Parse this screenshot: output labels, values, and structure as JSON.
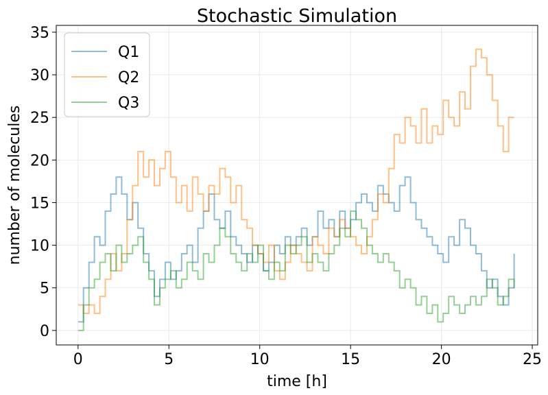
{
  "chart_data": {
    "type": "line",
    "title": "Stochastic Simulation",
    "xlabel": "time [h]",
    "ylabel": "number of molecules",
    "xlim": [
      -1.2,
      25.3
    ],
    "ylim": [
      -1.7,
      35.8
    ],
    "xticks": [
      0,
      5,
      10,
      15,
      20,
      25
    ],
    "yticks": [
      0,
      5,
      10,
      15,
      20,
      25,
      30,
      35
    ],
    "grid": true,
    "legend": "upper-left",
    "series": [
      {
        "name": "Q1",
        "color": "#1f77b4",
        "x": [
          0,
          0.3,
          0.6,
          0.9,
          1.2,
          1.5,
          1.8,
          2.1,
          2.4,
          2.7,
          3.0,
          3.3,
          3.6,
          3.9,
          4.2,
          4.5,
          4.8,
          5.1,
          5.4,
          5.7,
          6.0,
          6.3,
          6.6,
          6.9,
          7.2,
          7.5,
          7.8,
          8.1,
          8.4,
          8.7,
          9.0,
          9.3,
          9.6,
          9.9,
          10.2,
          10.5,
          10.8,
          11.1,
          11.4,
          11.7,
          12.0,
          12.3,
          12.6,
          12.9,
          13.2,
          13.5,
          13.8,
          14.1,
          14.4,
          14.7,
          15.0,
          15.3,
          15.6,
          15.9,
          16.2,
          16.5,
          16.8,
          17.1,
          17.4,
          17.7,
          18.0,
          18.3,
          18.6,
          18.9,
          19.2,
          19.5,
          19.8,
          20.1,
          20.4,
          20.7,
          21.0,
          21.3,
          21.6,
          21.9,
          22.2,
          22.5,
          22.8,
          23.1,
          23.4,
          23.7,
          24.0
        ],
        "y": [
          1,
          5,
          8,
          11,
          10,
          14,
          16,
          18,
          16,
          13,
          15,
          12,
          9,
          7,
          4,
          6,
          8,
          6,
          7,
          9,
          10,
          8,
          12,
          14,
          16,
          13,
          12,
          14,
          11,
          10,
          9,
          8,
          10,
          9,
          7,
          8,
          10,
          9,
          11,
          10,
          11,
          12,
          10,
          11,
          14,
          12,
          13,
          11,
          14,
          12,
          13,
          15,
          16,
          15,
          14,
          17,
          16,
          15,
          14,
          17,
          18,
          15,
          13,
          12,
          11,
          10,
          9,
          8,
          11,
          10,
          13,
          12,
          10,
          9,
          7,
          5,
          6,
          4,
          3,
          5,
          9
        ]
      },
      {
        "name": "Q2",
        "color": "#ff7f0e",
        "x": [
          0,
          0.3,
          0.6,
          0.9,
          1.2,
          1.5,
          1.8,
          2.1,
          2.4,
          2.7,
          3.0,
          3.3,
          3.6,
          3.9,
          4.2,
          4.5,
          4.8,
          5.1,
          5.4,
          5.7,
          6.0,
          6.3,
          6.6,
          6.9,
          7.2,
          7.5,
          7.8,
          8.1,
          8.4,
          8.7,
          9.0,
          9.3,
          9.6,
          9.9,
          10.2,
          10.5,
          10.8,
          11.1,
          11.4,
          11.7,
          12.0,
          12.3,
          12.6,
          12.9,
          13.2,
          13.5,
          13.8,
          14.1,
          14.4,
          14.7,
          15.0,
          15.3,
          15.6,
          15.9,
          16.2,
          16.5,
          16.8,
          17.1,
          17.4,
          17.7,
          18.0,
          18.3,
          18.6,
          18.9,
          19.2,
          19.5,
          19.8,
          20.1,
          20.4,
          20.7,
          21.0,
          21.3,
          21.6,
          21.9,
          22.2,
          22.5,
          22.8,
          23.1,
          23.4,
          23.7,
          24.0
        ],
        "y": [
          3,
          2,
          3,
          2,
          4,
          6,
          9,
          7,
          9,
          13,
          17,
          21,
          18,
          20,
          17,
          19,
          21,
          18,
          15,
          17,
          14,
          18,
          16,
          14,
          17,
          16,
          19,
          18,
          15,
          17,
          13,
          12,
          10,
          9,
          8,
          10,
          7,
          6,
          8,
          10,
          9,
          8,
          7,
          11,
          10,
          9,
          12,
          11,
          13,
          12,
          11,
          10,
          9,
          11,
          13,
          16,
          15,
          19,
          23,
          22,
          25,
          24,
          22,
          26,
          22,
          24,
          23,
          27,
          25,
          24,
          28,
          26,
          31,
          33,
          32,
          30,
          27,
          24,
          21,
          25,
          25
        ]
      },
      {
        "name": "Q3",
        "color": "#2ca02c",
        "x": [
          0,
          0.3,
          0.6,
          0.9,
          1.2,
          1.5,
          1.8,
          2.1,
          2.4,
          2.7,
          3.0,
          3.3,
          3.6,
          3.9,
          4.2,
          4.5,
          4.8,
          5.1,
          5.4,
          5.7,
          6.0,
          6.3,
          6.6,
          6.9,
          7.2,
          7.5,
          7.8,
          8.1,
          8.4,
          8.7,
          9.0,
          9.3,
          9.6,
          9.9,
          10.2,
          10.5,
          10.8,
          11.1,
          11.4,
          11.7,
          12.0,
          12.3,
          12.6,
          12.9,
          13.2,
          13.5,
          13.8,
          14.1,
          14.4,
          14.7,
          15.0,
          15.3,
          15.6,
          15.9,
          16.2,
          16.5,
          16.8,
          17.1,
          17.4,
          17.7,
          18.0,
          18.3,
          18.6,
          18.9,
          19.2,
          19.5,
          19.8,
          20.1,
          20.4,
          20.7,
          21.0,
          21.3,
          21.6,
          21.9,
          22.2,
          22.5,
          22.8,
          23.1,
          23.4,
          23.7,
          24.0
        ],
        "y": [
          0,
          3,
          5,
          6,
          8,
          9,
          7,
          10,
          8,
          9,
          10,
          11,
          8,
          6,
          3,
          5,
          6,
          7,
          5,
          6,
          8,
          7,
          6,
          9,
          8,
          10,
          12,
          11,
          9,
          8,
          7,
          9,
          8,
          10,
          7,
          6,
          8,
          7,
          10,
          9,
          10,
          11,
          8,
          9,
          8,
          7,
          9,
          10,
          12,
          11,
          14,
          13,
          12,
          10,
          9,
          8,
          9,
          8,
          7,
          5,
          6,
          5,
          3,
          4,
          2,
          3,
          1,
          2,
          4,
          3,
          2,
          3,
          4,
          3,
          4,
          6,
          5,
          3,
          4,
          6,
          5
        ]
      }
    ]
  }
}
